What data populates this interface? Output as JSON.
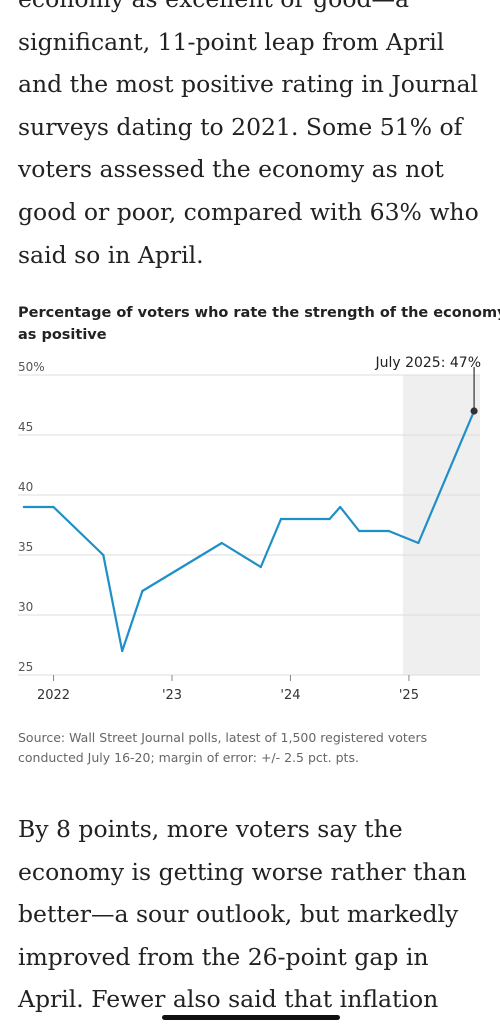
{
  "article": {
    "top_paragraph": [
      "economy as excellent or good—a",
      "significant, 11-point leap from April",
      "and the most positive rating in Journal",
      "surveys dating to 2021. Some 51% of",
      "voters assessed the economy as not",
      "good or poor, compared with 63% who",
      "said so in April."
    ],
    "bottom_paragraph": [
      "By 8 points, more voters say the",
      "economy is getting worse rather than",
      "better—a sour outlook, but markedly",
      "improved from the 26-point gap in",
      "April. Fewer also said that inflation"
    ]
  },
  "chart": {
    "title_lines": [
      "Percentage of voters who rate the strength of the economy",
      "as positive"
    ],
    "source_lines": [
      "Source: Wall Street Journal polls, latest of 1,500 registered voters",
      "conducted July 16-20; margin of error: +/- 2.5 pct. pts."
    ],
    "colors": {
      "line": "#1f8fc7",
      "highlight_band": "#efefef",
      "grid": "#dcdcdc",
      "marker": "#333333"
    }
  },
  "chart_data": {
    "type": "line",
    "title": "Percentage of voters who rate the strength of the economy as positive",
    "xlabel": "",
    "ylabel": "",
    "ylim": [
      25,
      50
    ],
    "xlim": [
      2021.7,
      2025.6
    ],
    "y_ticks": [
      25,
      30,
      35,
      40,
      45,
      50
    ],
    "y_tick_labels": [
      "25",
      "30",
      "35",
      "40",
      "45",
      "50%"
    ],
    "x_ticks": [
      2022,
      2023,
      2024,
      2025
    ],
    "x_tick_labels": [
      "2022",
      "'23",
      "'24",
      "'25"
    ],
    "grid": true,
    "highlight_range": [
      2024.95,
      2025.6
    ],
    "series": [
      {
        "x": [
          2021.75,
          2022.0,
          2022.42,
          2022.58,
          2022.75,
          2023.42,
          2023.75,
          2023.92,
          2024.33,
          2024.42,
          2024.58,
          2024.83,
          2025.08,
          2025.55
        ],
        "values": [
          39,
          39,
          35,
          27,
          32,
          36,
          34,
          38,
          38,
          39,
          37,
          37,
          36,
          47
        ]
      }
    ],
    "annotations": [
      {
        "label": "July 2025: 47%",
        "x": 2025.55,
        "y": 47
      }
    ]
  }
}
